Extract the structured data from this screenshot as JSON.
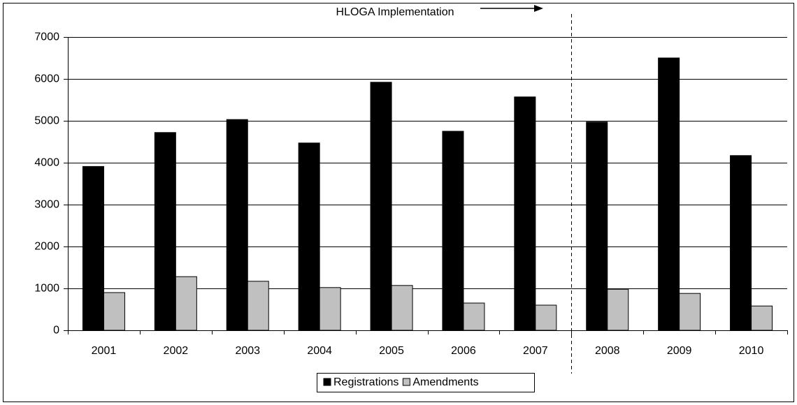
{
  "chart_data": {
    "type": "bar",
    "categories": [
      "2001",
      "2002",
      "2003",
      "2004",
      "2005",
      "2006",
      "2007",
      "2008",
      "2009",
      "2010"
    ],
    "series": [
      {
        "name": "Registrations",
        "color": "#000000",
        "values": [
          3910,
          4720,
          5030,
          4470,
          5920,
          4750,
          5570,
          4970,
          6500,
          4170
        ]
      },
      {
        "name": "Amendments",
        "color": "#c0c0c0",
        "values": [
          900,
          1280,
          1170,
          1020,
          1070,
          650,
          600,
          980,
          880,
          580
        ]
      }
    ],
    "ylim": [
      0,
      7000
    ],
    "yticks": [
      0,
      1000,
      2000,
      3000,
      4000,
      5000,
      6000,
      7000
    ],
    "grid": true,
    "legend": "bottom",
    "annotation": {
      "text": "HLOGA Implementation",
      "category": "2008"
    }
  }
}
